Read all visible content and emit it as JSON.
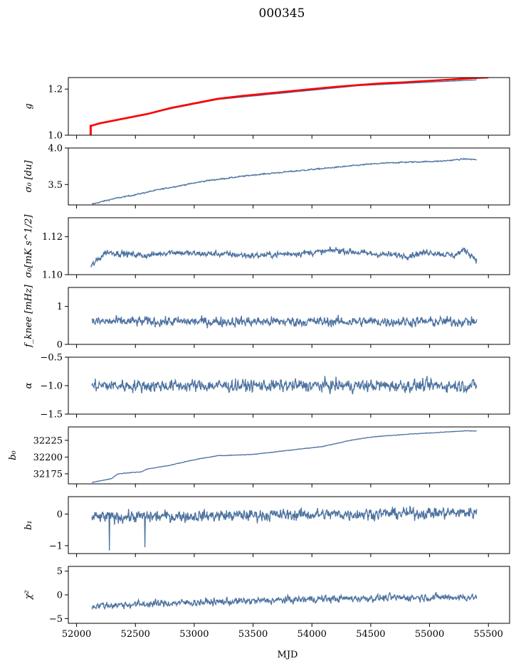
{
  "chart_data": {
    "type": "line",
    "title": "000345",
    "xlabel": "MJD",
    "xlim": [
      51930,
      55680
    ],
    "xticks": [
      52000,
      52500,
      53000,
      53500,
      54000,
      54500,
      55000,
      55500
    ],
    "xtick_labels": [
      "52000",
      "52500",
      "53000",
      "53500",
      "54000",
      "54500",
      "55000",
      "55500"
    ],
    "series_color": "#4c72a0",
    "highlight_color": "#ff0000",
    "panels": [
      {
        "name": "g",
        "ylabel": "g",
        "ylim": [
          1.0,
          1.25
        ],
        "yticks": [
          1.0,
          1.2
        ],
        "ytick_labels": [
          "1.0",
          "1.2"
        ],
        "x": [
          52120,
          52200,
          52400,
          52600,
          52800,
          53000,
          53200,
          53400,
          53600,
          53800,
          54000,
          54200,
          54400,
          54600,
          54800,
          55000,
          55200,
          55400
        ],
        "y": [
          1.04,
          1.05,
          1.07,
          1.09,
          1.115,
          1.135,
          1.155,
          1.165,
          1.175,
          1.185,
          1.195,
          1.205,
          1.215,
          1.22,
          1.225,
          1.23,
          1.235,
          1.24
        ],
        "overlay": {
          "name": "g (fit)",
          "x": [
            52120,
            52200,
            52400,
            52600,
            52800,
            53000,
            53200,
            53400,
            53600,
            53800,
            54000,
            54200,
            54400,
            54600,
            54800,
            55000,
            55200,
            55400,
            55500
          ],
          "y": [
            1.04,
            1.052,
            1.072,
            1.092,
            1.118,
            1.138,
            1.158,
            1.17,
            1.18,
            1.19,
            1.2,
            1.21,
            1.218,
            1.225,
            1.23,
            1.236,
            1.242,
            1.248,
            1.25
          ],
          "start_drop": [
            1.0,
            1.045
          ]
        }
      },
      {
        "name": "sigma0-du",
        "ylabel": "σ₀ [du]",
        "ylim": [
          3.22,
          4.0
        ],
        "yticks": [
          3.5,
          4.0
        ],
        "ytick_labels": [
          "3.5",
          "4.0"
        ],
        "x": [
          52130,
          52300,
          52500,
          52700,
          52900,
          53100,
          53300,
          53500,
          53700,
          53900,
          54100,
          54300,
          54500,
          54700,
          54900,
          55100,
          55300,
          55400
        ],
        "y": [
          3.23,
          3.3,
          3.36,
          3.43,
          3.49,
          3.55,
          3.59,
          3.63,
          3.66,
          3.69,
          3.72,
          3.75,
          3.78,
          3.8,
          3.81,
          3.82,
          3.85,
          3.84
        ],
        "noise": 0.008
      },
      {
        "name": "sigma0-mk",
        "ylabel": "σ₀[mK s^1/2]",
        "ylim": [
          1.1,
          1.13
        ],
        "yticks": [
          1.1,
          1.12
        ],
        "ytick_labels": [
          "1.10",
          "1.12"
        ],
        "x": [
          52120,
          52150,
          52250,
          52400,
          52600,
          52800,
          53000,
          53200,
          53500,
          53800,
          54100,
          54200,
          54500,
          54800,
          55000,
          55200,
          55300,
          55400
        ],
        "y": [
          1.104,
          1.106,
          1.112,
          1.111,
          1.11,
          1.112,
          1.111,
          1.111,
          1.11,
          1.111,
          1.112,
          1.113,
          1.111,
          1.11,
          1.112,
          1.11,
          1.113,
          1.108
        ],
        "noise": 0.0015
      },
      {
        "name": "fknee",
        "ylabel": "f_knee [mHz]",
        "ylim": [
          0,
          1.5
        ],
        "yticks": [
          0,
          1
        ],
        "ytick_labels": [
          "0",
          "1"
        ],
        "x": [
          52130,
          55400
        ],
        "y": [
          0.6,
          0.6
        ],
        "noise": 0.12
      },
      {
        "name": "alpha",
        "ylabel": "α",
        "ylim": [
          -1.5,
          -0.5
        ],
        "yticks": [
          -1.5,
          -1.0,
          -0.5
        ],
        "ytick_labels": [
          "−1.5",
          "−1.0",
          "−0.5"
        ],
        "x": [
          52130,
          55400
        ],
        "y": [
          -1.0,
          -1.0
        ],
        "noise": 0.1
      },
      {
        "name": "b0",
        "ylabel": "b₀",
        "ylim": [
          32160,
          32245
        ],
        "yticks": [
          32175,
          32200,
          32225
        ],
        "ytick_labels": [
          "32175",
          "32200",
          "32225"
        ],
        "x": [
          52130,
          52300,
          52350,
          52550,
          52600,
          52800,
          53000,
          53200,
          53500,
          53800,
          54100,
          54300,
          54500,
          54800,
          55000,
          55200,
          55300,
          55400
        ],
        "y": [
          32162,
          32168,
          32175,
          32178,
          32182,
          32188,
          32196,
          32202,
          32204,
          32210,
          32216,
          32224,
          32230,
          32234,
          32236,
          32238,
          32239,
          32239
        ],
        "noise": 0.4
      },
      {
        "name": "b1",
        "ylabel": "b₁",
        "ylim": [
          -1.25,
          0.55
        ],
        "yticks": [
          -1,
          0
        ],
        "ytick_labels": [
          "−1",
          "0"
        ],
        "x": [
          52130,
          55400
        ],
        "y": [
          -0.1,
          0.05
        ],
        "noise": 0.17,
        "spikes": [
          [
            52280,
            -1.15
          ],
          [
            52580,
            -1.05
          ]
        ]
      },
      {
        "name": "chi2",
        "ylabel": "χ²",
        "ylim": [
          -6,
          6
        ],
        "yticks": [
          -5,
          0,
          5
        ],
        "ytick_labels": [
          "−5",
          "0",
          "5"
        ],
        "x": [
          52130,
          52500,
          53000,
          53500,
          54000,
          54500,
          55000,
          55400
        ],
        "y": [
          -2.3,
          -2.0,
          -1.6,
          -1.3,
          -0.9,
          -0.7,
          -0.5,
          -0.5
        ],
        "noise": 0.7
      }
    ]
  }
}
